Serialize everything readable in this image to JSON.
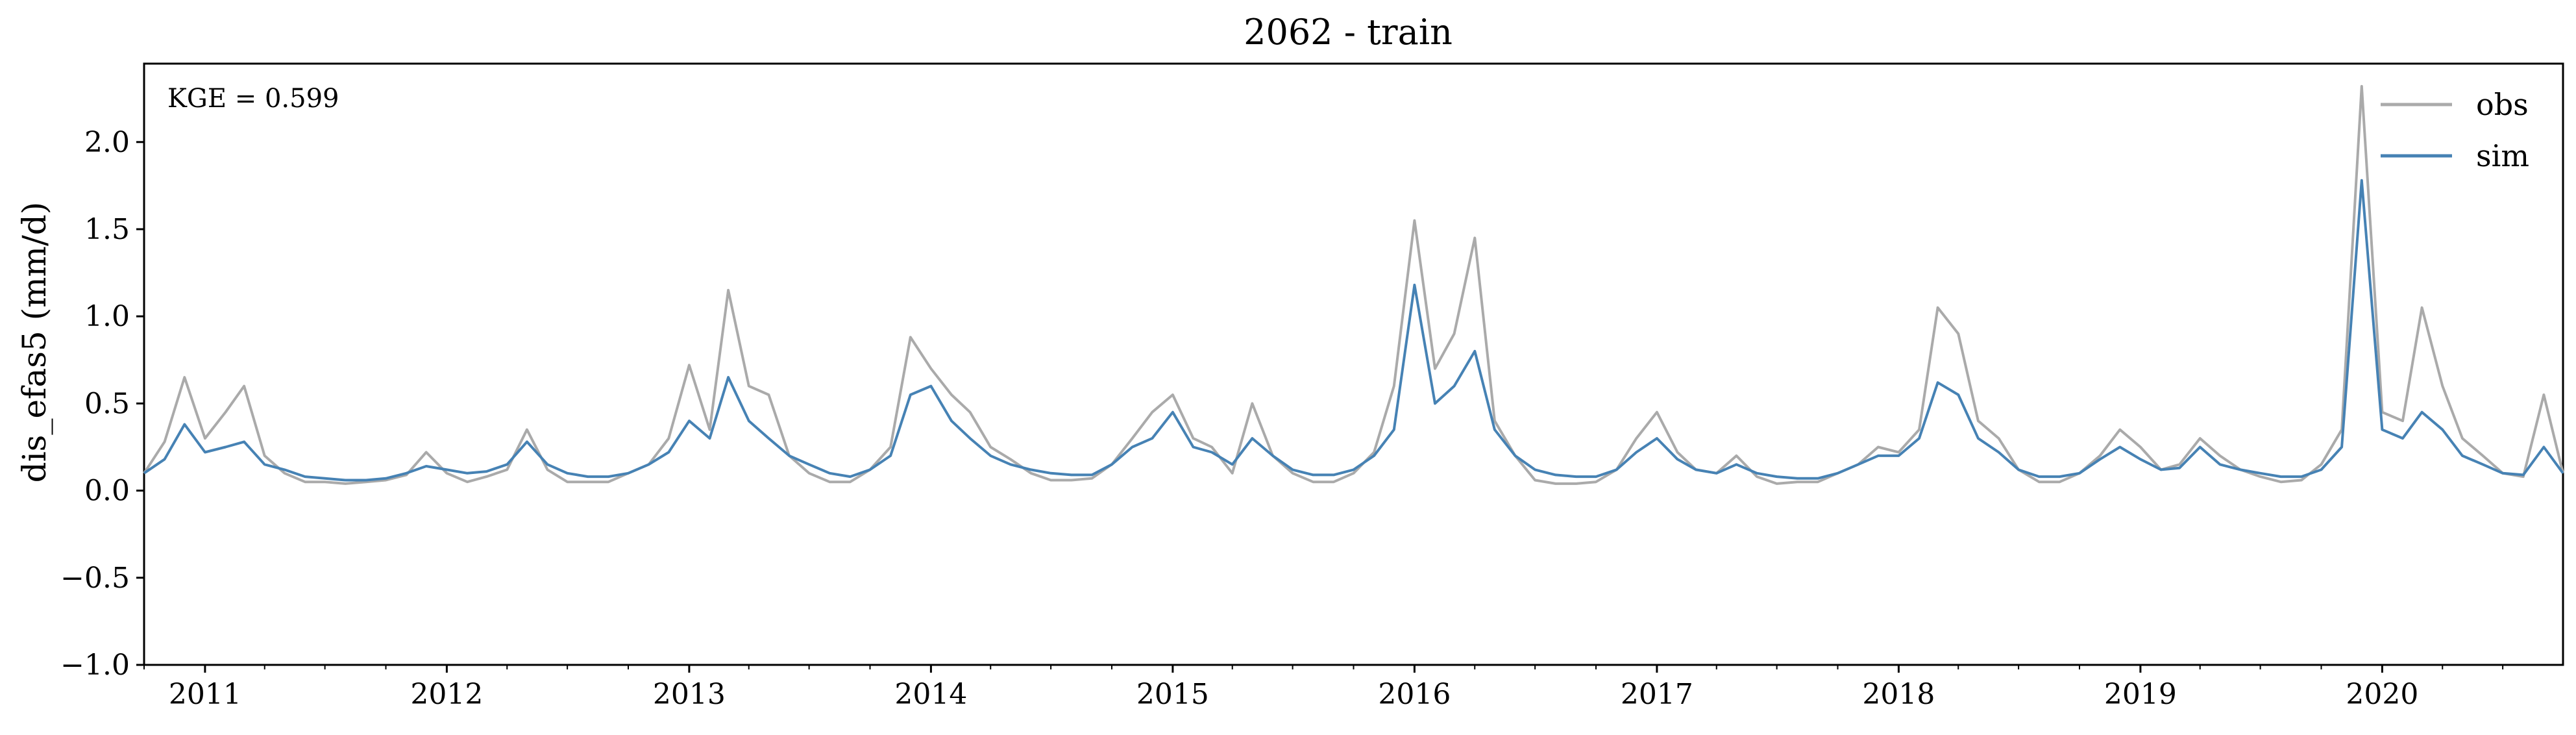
{
  "chart_data": {
    "type": "line",
    "title": "2062 - train",
    "xlabel": "",
    "ylabel": "dis_efas5 (mm/d)",
    "annotation": "KGE = 0.599",
    "ylim": [
      -1.0,
      2.45
    ],
    "xlim": [
      "2010-10-01",
      "2020-09-30"
    ],
    "yticks": [
      -1.0,
      -0.5,
      0.0,
      0.5,
      1.0,
      1.5,
      2.0
    ],
    "ytick_labels": [
      "−1.0",
      "−0.5",
      "0.0",
      "0.5",
      "1.0",
      "1.5",
      "2.0"
    ],
    "xticks": [
      "2011-01-01",
      "2012-01-01",
      "2013-01-01",
      "2014-01-01",
      "2015-01-01",
      "2016-01-01",
      "2017-01-01",
      "2018-01-01",
      "2019-01-01",
      "2020-01-01"
    ],
    "xtick_labels": [
      "2011",
      "2012",
      "2013",
      "2014",
      "2015",
      "2016",
      "2017",
      "2018",
      "2019",
      "2020"
    ],
    "grid": false,
    "legend_position": "top-right",
    "series": [
      {
        "name": "obs",
        "color": "#aaaaaa",
        "x": [
          "2010-10-01",
          "2010-11-01",
          "2010-12-01",
          "2011-01-01",
          "2011-02-01",
          "2011-03-01",
          "2011-04-01",
          "2011-05-01",
          "2011-06-01",
          "2011-07-01",
          "2011-08-01",
          "2011-09-01",
          "2011-10-01",
          "2011-11-01",
          "2011-12-01",
          "2012-01-01",
          "2012-02-01",
          "2012-03-01",
          "2012-04-01",
          "2012-05-01",
          "2012-06-01",
          "2012-07-01",
          "2012-08-01",
          "2012-09-01",
          "2012-10-01",
          "2012-11-01",
          "2012-12-01",
          "2013-01-01",
          "2013-02-01",
          "2013-03-01",
          "2013-04-01",
          "2013-05-01",
          "2013-06-01",
          "2013-07-01",
          "2013-08-01",
          "2013-09-01",
          "2013-10-01",
          "2013-11-01",
          "2013-12-01",
          "2014-01-01",
          "2014-02-01",
          "2014-03-01",
          "2014-04-01",
          "2014-05-01",
          "2014-06-01",
          "2014-07-01",
          "2014-08-01",
          "2014-09-01",
          "2014-10-01",
          "2014-11-01",
          "2014-12-01",
          "2015-01-01",
          "2015-02-01",
          "2015-03-01",
          "2015-04-01",
          "2015-05-01",
          "2015-06-01",
          "2015-07-01",
          "2015-08-01",
          "2015-09-01",
          "2015-10-01",
          "2015-11-01",
          "2015-12-01",
          "2016-01-01",
          "2016-02-01",
          "2016-03-01",
          "2016-04-01",
          "2016-05-01",
          "2016-06-01",
          "2016-07-01",
          "2016-08-01",
          "2016-09-01",
          "2016-10-01",
          "2016-11-01",
          "2016-12-01",
          "2017-01-01",
          "2017-02-01",
          "2017-03-01",
          "2017-04-01",
          "2017-05-01",
          "2017-06-01",
          "2017-07-01",
          "2017-08-01",
          "2017-09-01",
          "2017-10-01",
          "2017-11-01",
          "2017-12-01",
          "2018-01-01",
          "2018-02-01",
          "2018-03-01",
          "2018-04-01",
          "2018-05-01",
          "2018-06-01",
          "2018-07-01",
          "2018-08-01",
          "2018-09-01",
          "2018-10-01",
          "2018-11-01",
          "2018-12-01",
          "2019-01-01",
          "2019-02-01",
          "2019-03-01",
          "2019-04-01",
          "2019-05-01",
          "2019-06-01",
          "2019-07-01",
          "2019-08-01",
          "2019-09-01",
          "2019-10-01",
          "2019-11-01",
          "2019-12-01",
          "2020-01-01",
          "2020-02-01",
          "2020-03-01",
          "2020-04-01",
          "2020-05-01",
          "2020-06-01",
          "2020-07-01",
          "2020-08-01",
          "2020-09-01",
          "2020-09-30"
        ],
        "y": [
          0.1,
          0.28,
          0.65,
          0.3,
          0.45,
          0.6,
          0.2,
          0.1,
          0.05,
          0.05,
          0.04,
          0.05,
          0.06,
          0.09,
          0.22,
          0.1,
          0.05,
          0.08,
          0.12,
          0.35,
          0.12,
          0.05,
          0.05,
          0.05,
          0.1,
          0.15,
          0.3,
          0.72,
          0.35,
          1.15,
          0.6,
          0.55,
          0.2,
          0.1,
          0.05,
          0.05,
          0.12,
          0.25,
          0.88,
          0.7,
          0.55,
          0.45,
          0.25,
          0.18,
          0.1,
          0.06,
          0.06,
          0.07,
          0.15,
          0.3,
          0.45,
          0.55,
          0.3,
          0.25,
          0.1,
          0.5,
          0.2,
          0.1,
          0.05,
          0.05,
          0.1,
          0.22,
          0.6,
          1.55,
          0.7,
          0.9,
          1.45,
          0.4,
          0.2,
          0.06,
          0.04,
          0.04,
          0.05,
          0.12,
          0.3,
          0.45,
          0.22,
          0.12,
          0.1,
          0.2,
          0.08,
          0.04,
          0.05,
          0.05,
          0.1,
          0.15,
          0.25,
          0.22,
          0.35,
          1.05,
          0.9,
          0.4,
          0.3,
          0.12,
          0.05,
          0.05,
          0.1,
          0.2,
          0.35,
          0.25,
          0.12,
          0.15,
          0.3,
          0.2,
          0.12,
          0.08,
          0.05,
          0.06,
          0.15,
          0.35,
          2.32,
          0.45,
          0.4,
          1.05,
          0.6,
          0.3,
          0.2,
          0.1,
          0.08,
          0.55,
          0.1
        ]
      },
      {
        "name": "sim",
        "color": "#4682b4",
        "x": [
          "2010-10-01",
          "2010-11-01",
          "2010-12-01",
          "2011-01-01",
          "2011-02-01",
          "2011-03-01",
          "2011-04-01",
          "2011-05-01",
          "2011-06-01",
          "2011-07-01",
          "2011-08-01",
          "2011-09-01",
          "2011-10-01",
          "2011-11-01",
          "2011-12-01",
          "2012-01-01",
          "2012-02-01",
          "2012-03-01",
          "2012-04-01",
          "2012-05-01",
          "2012-06-01",
          "2012-07-01",
          "2012-08-01",
          "2012-09-01",
          "2012-10-01",
          "2012-11-01",
          "2012-12-01",
          "2013-01-01",
          "2013-02-01",
          "2013-03-01",
          "2013-04-01",
          "2013-05-01",
          "2013-06-01",
          "2013-07-01",
          "2013-08-01",
          "2013-09-01",
          "2013-10-01",
          "2013-11-01",
          "2013-12-01",
          "2014-01-01",
          "2014-02-01",
          "2014-03-01",
          "2014-04-01",
          "2014-05-01",
          "2014-06-01",
          "2014-07-01",
          "2014-08-01",
          "2014-09-01",
          "2014-10-01",
          "2014-11-01",
          "2014-12-01",
          "2015-01-01",
          "2015-02-01",
          "2015-03-01",
          "2015-04-01",
          "2015-05-01",
          "2015-06-01",
          "2015-07-01",
          "2015-08-01",
          "2015-09-01",
          "2015-10-01",
          "2015-11-01",
          "2015-12-01",
          "2016-01-01",
          "2016-02-01",
          "2016-03-01",
          "2016-04-01",
          "2016-05-01",
          "2016-06-01",
          "2016-07-01",
          "2016-08-01",
          "2016-09-01",
          "2016-10-01",
          "2016-11-01",
          "2016-12-01",
          "2017-01-01",
          "2017-02-01",
          "2017-03-01",
          "2017-04-01",
          "2017-05-01",
          "2017-06-01",
          "2017-07-01",
          "2017-08-01",
          "2017-09-01",
          "2017-10-01",
          "2017-11-01",
          "2017-12-01",
          "2018-01-01",
          "2018-02-01",
          "2018-03-01",
          "2018-04-01",
          "2018-05-01",
          "2018-06-01",
          "2018-07-01",
          "2018-08-01",
          "2018-09-01",
          "2018-10-01",
          "2018-11-01",
          "2018-12-01",
          "2019-01-01",
          "2019-02-01",
          "2019-03-01",
          "2019-04-01",
          "2019-05-01",
          "2019-06-01",
          "2019-07-01",
          "2019-08-01",
          "2019-09-01",
          "2019-10-01",
          "2019-11-01",
          "2019-12-01",
          "2020-01-01",
          "2020-02-01",
          "2020-03-01",
          "2020-04-01",
          "2020-05-01",
          "2020-06-01",
          "2020-07-01",
          "2020-08-01",
          "2020-09-01",
          "2020-09-30"
        ],
        "y": [
          0.1,
          0.18,
          0.38,
          0.22,
          0.25,
          0.28,
          0.15,
          0.12,
          0.08,
          0.07,
          0.06,
          0.06,
          0.07,
          0.1,
          0.14,
          0.12,
          0.1,
          0.11,
          0.15,
          0.28,
          0.15,
          0.1,
          0.08,
          0.08,
          0.1,
          0.15,
          0.22,
          0.4,
          0.3,
          0.65,
          0.4,
          0.3,
          0.2,
          0.15,
          0.1,
          0.08,
          0.12,
          0.2,
          0.55,
          0.6,
          0.4,
          0.3,
          0.2,
          0.15,
          0.12,
          0.1,
          0.09,
          0.09,
          0.15,
          0.25,
          0.3,
          0.45,
          0.25,
          0.22,
          0.15,
          0.3,
          0.2,
          0.12,
          0.09,
          0.09,
          0.12,
          0.2,
          0.35,
          1.18,
          0.5,
          0.6,
          0.8,
          0.35,
          0.2,
          0.12,
          0.09,
          0.08,
          0.08,
          0.12,
          0.22,
          0.3,
          0.18,
          0.12,
          0.1,
          0.15,
          0.1,
          0.08,
          0.07,
          0.07,
          0.1,
          0.15,
          0.2,
          0.2,
          0.3,
          0.62,
          0.55,
          0.3,
          0.22,
          0.12,
          0.08,
          0.08,
          0.1,
          0.18,
          0.25,
          0.18,
          0.12,
          0.13,
          0.25,
          0.15,
          0.12,
          0.1,
          0.08,
          0.08,
          0.12,
          0.25,
          1.78,
          0.35,
          0.3,
          0.45,
          0.35,
          0.2,
          0.15,
          0.1,
          0.09,
          0.25,
          0.1
        ]
      }
    ]
  }
}
